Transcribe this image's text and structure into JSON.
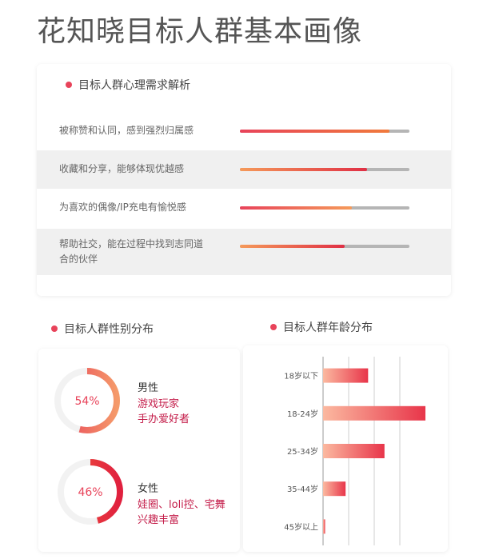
{
  "title": "花知晓目标人群基本画像",
  "needs": {
    "heading": "目标人群心理需求解析",
    "items": [
      {
        "label": "被称赞和认同，感到强烈归属感",
        "value": 0.88,
        "from": "#e8435a",
        "to": "#f07a3c"
      },
      {
        "label": "收藏和分享，能够体现优越感",
        "value": 0.75,
        "from": "#f59a5a",
        "to": "#e03045"
      },
      {
        "label": "为喜欢的偶像/IP充电有愉悦感",
        "value": 0.66,
        "from": "#e8435a",
        "to": "#f59a5a"
      },
      {
        "label": "帮助社交，能在过程中找到志同道合的伙伴",
        "value": 0.62,
        "from": "#f59a5a",
        "to": "#e03045"
      }
    ]
  },
  "gender": {
    "heading": "目标人群性别分布",
    "male": {
      "percent_label": "54%",
      "value": 54,
      "title": "男性",
      "desc": [
        "游戏玩家",
        "手办爱好者"
      ]
    },
    "female": {
      "percent_label": "46%",
      "value": 46,
      "title": "女性",
      "desc": [
        "娃圈、loli控、宅舞",
        "兴趣丰富"
      ]
    }
  },
  "chart_data": {
    "type": "bar",
    "orientation": "horizontal",
    "title": "目标人群年龄分布",
    "categories": [
      "18岁以下",
      "18-24岁",
      "25-34岁",
      "35-44岁",
      "45岁以上"
    ],
    "values": [
      22,
      50,
      30,
      11,
      1
    ],
    "xlim": [
      0,
      100
    ],
    "grid": true,
    "colors": {
      "from": "#fbb9a0",
      "to": "#e8354a"
    }
  }
}
